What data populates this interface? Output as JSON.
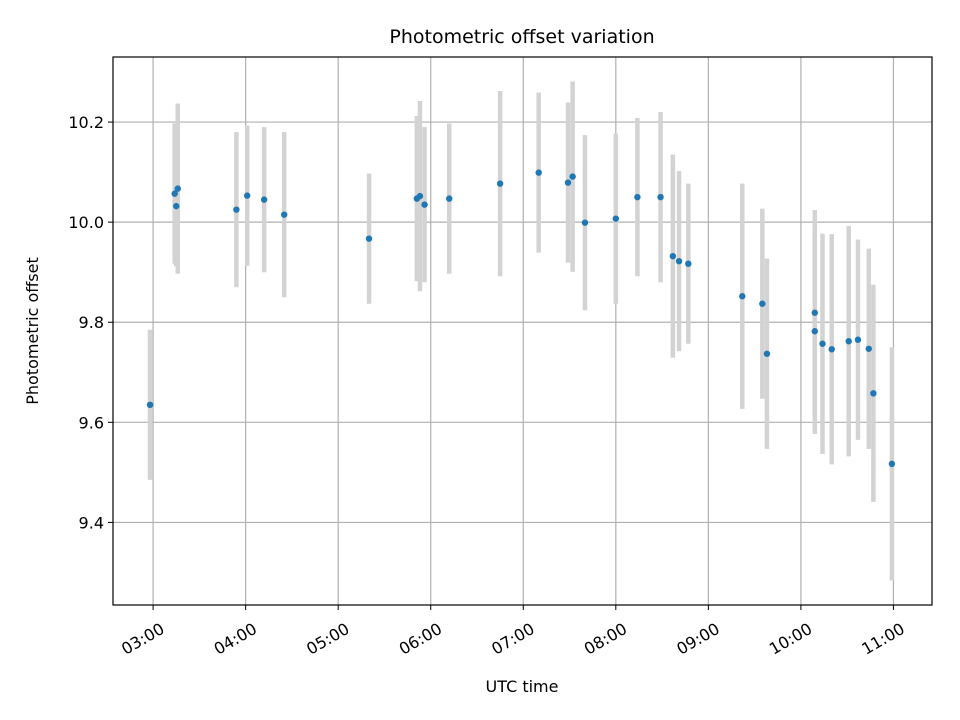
{
  "chart_data": {
    "type": "scatter",
    "title": "Photometric offset variation",
    "xlabel": "UTC time",
    "ylabel": "Photometric offset",
    "x_ticks": [
      "03:00",
      "04:00",
      "05:00",
      "06:00",
      "07:00",
      "08:00",
      "09:00",
      "10:00",
      "11:00"
    ],
    "y_ticks": [
      "9.4",
      "9.6",
      "9.8",
      "10.0",
      "10.2"
    ],
    "xlim": [
      "02:34",
      "11:25"
    ],
    "ylim": [
      9.235,
      10.33
    ],
    "grid": true,
    "marker_color": "#1f77b4",
    "errorbar_color": "#d3d3d3",
    "points": [
      {
        "t": "02:58",
        "y": 9.635,
        "err": 0.15
      },
      {
        "t": "03:14",
        "y": 10.057,
        "err": 0.14
      },
      {
        "t": "03:15",
        "y": 10.032,
        "err": 0.12
      },
      {
        "t": "03:16",
        "y": 10.067,
        "err": 0.17
      },
      {
        "t": "03:54",
        "y": 10.025,
        "err": 0.155
      },
      {
        "t": "04:01",
        "y": 10.053,
        "err": 0.14
      },
      {
        "t": "04:12",
        "y": 10.045,
        "err": 0.145
      },
      {
        "t": "04:25",
        "y": 10.015,
        "err": 0.165
      },
      {
        "t": "05:20",
        "y": 9.967,
        "err": 0.13
      },
      {
        "t": "05:51",
        "y": 10.047,
        "err": 0.165
      },
      {
        "t": "05:53",
        "y": 10.052,
        "err": 0.19
      },
      {
        "t": "05:56",
        "y": 10.035,
        "err": 0.155
      },
      {
        "t": "06:12",
        "y": 10.047,
        "err": 0.15
      },
      {
        "t": "06:45",
        "y": 10.077,
        "err": 0.185
      },
      {
        "t": "07:10",
        "y": 10.099,
        "err": 0.16
      },
      {
        "t": "07:29",
        "y": 10.079,
        "err": 0.16
      },
      {
        "t": "07:32",
        "y": 10.091,
        "err": 0.19
      },
      {
        "t": "07:40",
        "y": 9.999,
        "err": 0.175
      },
      {
        "t": "08:00",
        "y": 10.007,
        "err": 0.17
      },
      {
        "t": "08:14",
        "y": 10.05,
        "err": 0.158
      },
      {
        "t": "08:29",
        "y": 10.05,
        "err": 0.17
      },
      {
        "t": "08:37",
        "y": 9.932,
        "err": 0.203
      },
      {
        "t": "08:41",
        "y": 9.922,
        "err": 0.18
      },
      {
        "t": "08:47",
        "y": 9.917,
        "err": 0.16
      },
      {
        "t": "09:22",
        "y": 9.852,
        "err": 0.225
      },
      {
        "t": "09:35",
        "y": 9.837,
        "err": 0.19
      },
      {
        "t": "09:38",
        "y": 9.737,
        "err": 0.19
      },
      {
        "t": "10:09",
        "y": 9.819,
        "err": 0.205
      },
      {
        "t": "10:09",
        "y": 9.782,
        "err": 0.205
      },
      {
        "t": "10:14",
        "y": 9.757,
        "err": 0.22
      },
      {
        "t": "10:20",
        "y": 9.746,
        "err": 0.23
      },
      {
        "t": "10:31",
        "y": 9.762,
        "err": 0.23
      },
      {
        "t": "10:37",
        "y": 9.765,
        "err": 0.2
      },
      {
        "t": "10:44",
        "y": 9.747,
        "err": 0.2
      },
      {
        "t": "10:47",
        "y": 9.658,
        "err": 0.217
      },
      {
        "t": "10:59",
        "y": 9.517,
        "err": 0.233
      }
    ]
  }
}
